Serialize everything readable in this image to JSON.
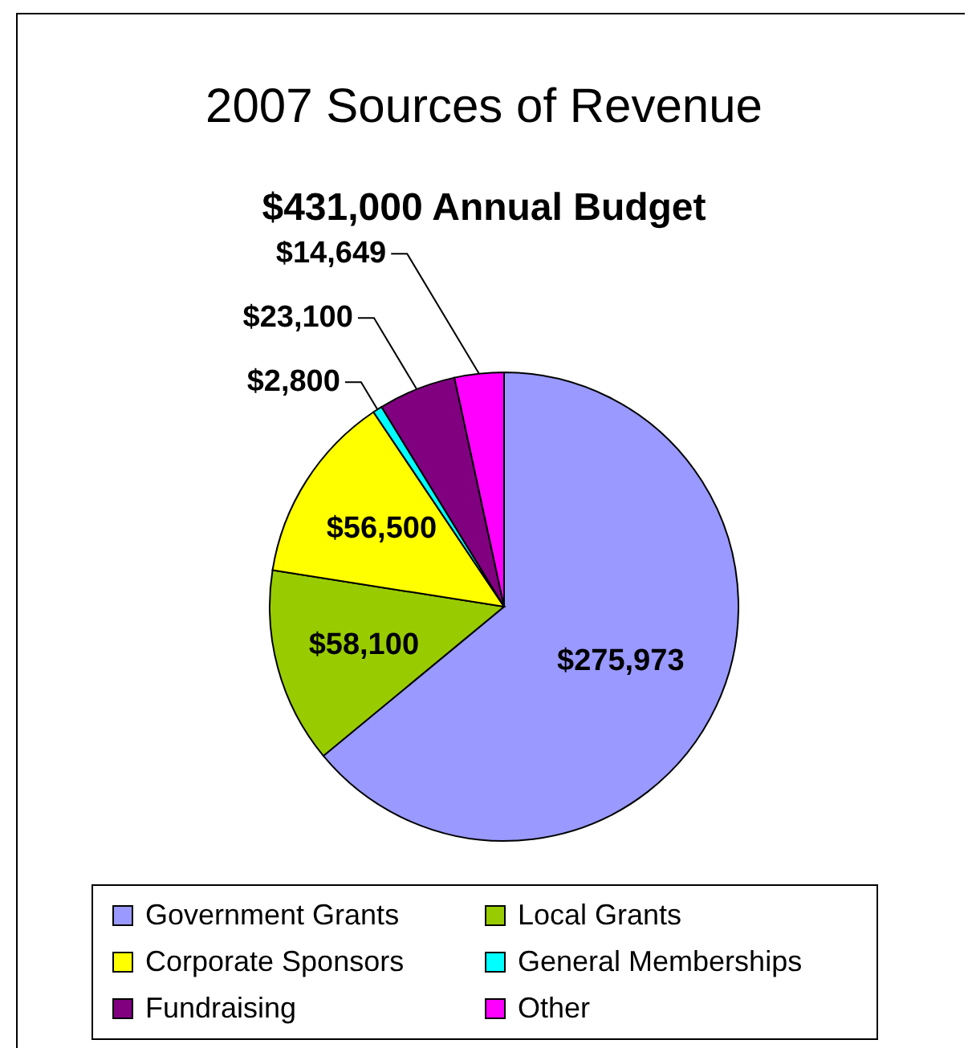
{
  "chart_data": {
    "type": "pie",
    "title": "2007 Sources of Revenue",
    "subtitle": "$431,000 Annual Budget",
    "categories": [
      "Government Grants",
      "Local Grants",
      "Corporate Sponsors",
      "General Memberships",
      "Fundraising",
      "Other"
    ],
    "values": [
      275973,
      58100,
      56500,
      2800,
      23100,
      14649
    ],
    "colors": [
      "#9999ff",
      "#99cc00",
      "#ffff00",
      "#00ffff",
      "#800080",
      "#ff00ff"
    ],
    "value_labels": [
      "$275,973",
      "$58,100",
      "$56,500",
      "$2,800",
      "$23,100",
      "$14,649"
    ],
    "legend": "bottom"
  }
}
